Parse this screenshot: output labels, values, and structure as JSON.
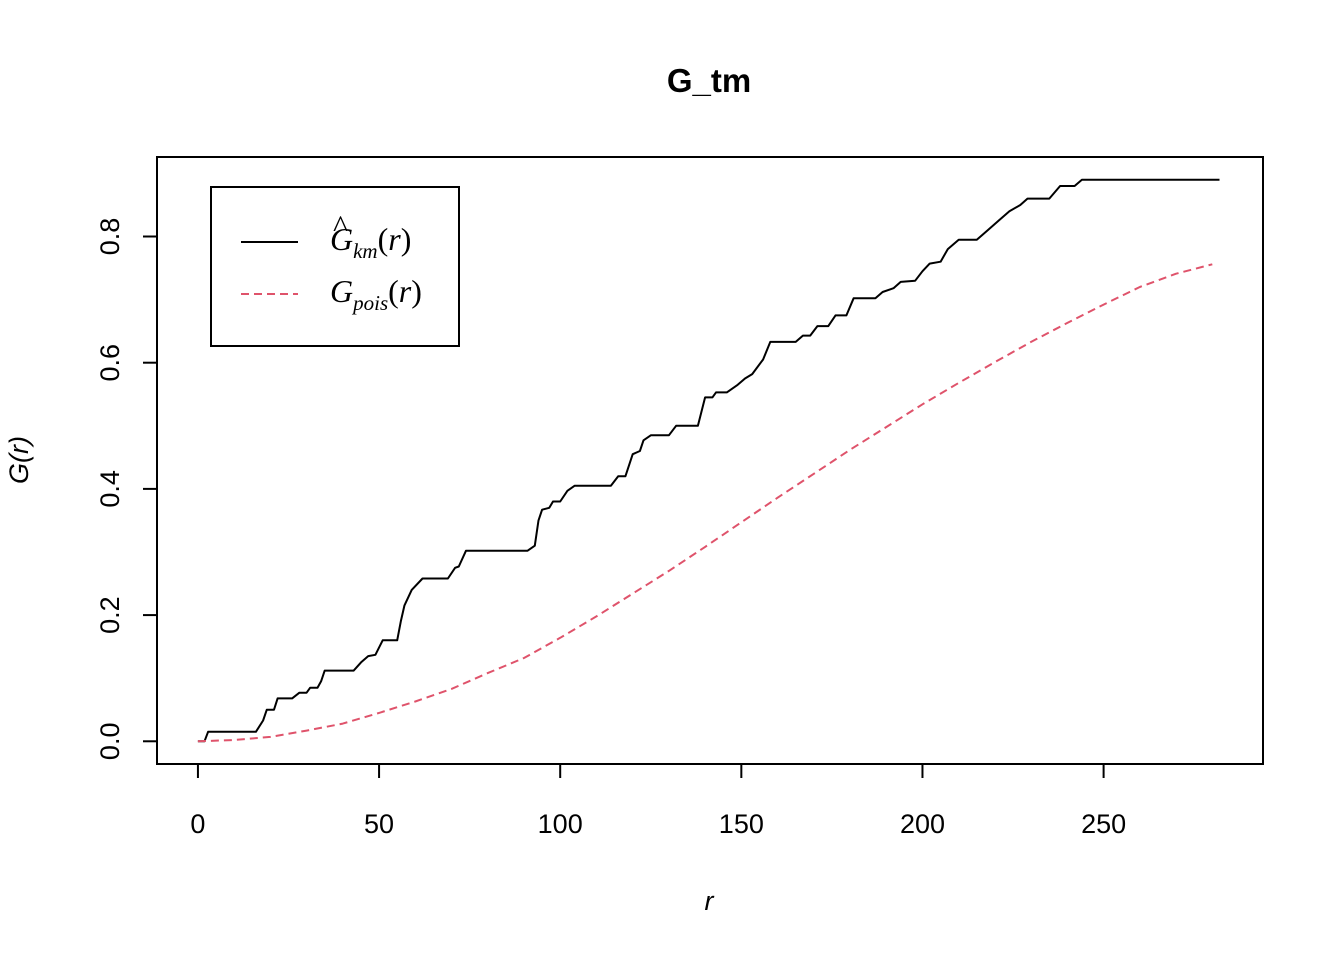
{
  "chart_data": {
    "type": "line",
    "title": "G_tm",
    "xlabel": "r",
    "ylabel": "G(r)",
    "xlim": [
      -11.3,
      294
    ],
    "ylim": [
      -0.036,
      0.926
    ],
    "x_ticks": [
      0,
      50,
      100,
      150,
      200,
      250
    ],
    "y_ticks": [
      0.0,
      0.2,
      0.4,
      0.6,
      0.8
    ],
    "x_tick_labels": [
      "0",
      "50",
      "100",
      "150",
      "200",
      "250"
    ],
    "y_tick_labels": [
      "0.0",
      "0.2",
      "0.4",
      "0.6",
      "0.8"
    ],
    "legend_position": "top-left",
    "series": [
      {
        "name": "Ĝkm(r)",
        "legend": {
          "symbol": "G",
          "hat": "^",
          "subscript": "km",
          "arg": "(r)",
          "italic_arg": "r"
        },
        "color": "#000000",
        "dash": "solid",
        "points": [
          [
            0,
            0.0
          ],
          [
            1.8,
            0.0
          ],
          [
            2.8,
            0.015
          ],
          [
            16,
            0.015
          ],
          [
            18,
            0.033
          ],
          [
            19,
            0.05
          ],
          [
            21,
            0.05
          ],
          [
            22,
            0.068
          ],
          [
            26,
            0.068
          ],
          [
            28,
            0.077
          ],
          [
            30,
            0.077
          ],
          [
            31,
            0.085
          ],
          [
            33,
            0.085
          ],
          [
            34,
            0.095
          ],
          [
            35,
            0.112
          ],
          [
            43,
            0.112
          ],
          [
            45,
            0.125
          ],
          [
            47,
            0.135
          ],
          [
            49,
            0.137
          ],
          [
            51,
            0.16
          ],
          [
            55,
            0.16
          ],
          [
            56,
            0.19
          ],
          [
            57,
            0.215
          ],
          [
            59,
            0.24
          ],
          [
            62,
            0.258
          ],
          [
            69,
            0.258
          ],
          [
            71,
            0.275
          ],
          [
            72,
            0.277
          ],
          [
            74,
            0.302
          ],
          [
            91,
            0.302
          ],
          [
            93,
            0.31
          ],
          [
            94,
            0.35
          ],
          [
            95,
            0.367
          ],
          [
            97,
            0.37
          ],
          [
            98,
            0.38
          ],
          [
            100,
            0.38
          ],
          [
            102,
            0.397
          ],
          [
            104,
            0.405
          ],
          [
            114,
            0.405
          ],
          [
            116,
            0.42
          ],
          [
            118,
            0.42
          ],
          [
            120,
            0.455
          ],
          [
            122,
            0.46
          ],
          [
            123,
            0.477
          ],
          [
            125,
            0.485
          ],
          [
            130,
            0.485
          ],
          [
            132,
            0.5
          ],
          [
            138,
            0.5
          ],
          [
            140,
            0.545
          ],
          [
            142,
            0.545
          ],
          [
            143,
            0.553
          ],
          [
            146,
            0.553
          ],
          [
            149,
            0.565
          ],
          [
            151,
            0.575
          ],
          [
            153,
            0.582
          ],
          [
            156,
            0.605
          ],
          [
            158,
            0.633
          ],
          [
            165,
            0.633
          ],
          [
            167,
            0.643
          ],
          [
            169,
            0.643
          ],
          [
            171,
            0.658
          ],
          [
            174,
            0.658
          ],
          [
            176,
            0.675
          ],
          [
            179,
            0.675
          ],
          [
            181,
            0.702
          ],
          [
            187,
            0.702
          ],
          [
            189,
            0.712
          ],
          [
            192,
            0.718
          ],
          [
            194,
            0.728
          ],
          [
            198,
            0.73
          ],
          [
            200,
            0.745
          ],
          [
            202,
            0.757
          ],
          [
            205,
            0.76
          ],
          [
            207,
            0.78
          ],
          [
            210,
            0.795
          ],
          [
            215,
            0.795
          ],
          [
            218,
            0.81
          ],
          [
            221,
            0.825
          ],
          [
            224,
            0.84
          ],
          [
            227,
            0.85
          ],
          [
            229,
            0.86
          ],
          [
            235,
            0.86
          ],
          [
            238,
            0.88
          ],
          [
            242,
            0.88
          ],
          [
            244,
            0.89
          ],
          [
            282,
            0.89
          ]
        ]
      },
      {
        "name": "Gpois(r)",
        "legend": {
          "symbol": "G",
          "hat": "",
          "subscript": "pois",
          "arg": "(r)",
          "italic_arg": "r"
        },
        "color": "#DF536B",
        "dash": "dashed",
        "points": [
          [
            0,
            0.0
          ],
          [
            10,
            0.002
          ],
          [
            20,
            0.007
          ],
          [
            30,
            0.017
          ],
          [
            40,
            0.028
          ],
          [
            50,
            0.045
          ],
          [
            60,
            0.063
          ],
          [
            70,
            0.083
          ],
          [
            80,
            0.108
          ],
          [
            90,
            0.132
          ],
          [
            100,
            0.164
          ],
          [
            110,
            0.198
          ],
          [
            120,
            0.234
          ],
          [
            130,
            0.27
          ],
          [
            140,
            0.308
          ],
          [
            150,
            0.347
          ],
          [
            160,
            0.386
          ],
          [
            170,
            0.424
          ],
          [
            180,
            0.462
          ],
          [
            190,
            0.498
          ],
          [
            200,
            0.534
          ],
          [
            210,
            0.568
          ],
          [
            220,
            0.601
          ],
          [
            230,
            0.633
          ],
          [
            240,
            0.663
          ],
          [
            250,
            0.692
          ],
          [
            260,
            0.72
          ],
          [
            270,
            0.741
          ],
          [
            280,
            0.756
          ]
        ]
      }
    ]
  }
}
